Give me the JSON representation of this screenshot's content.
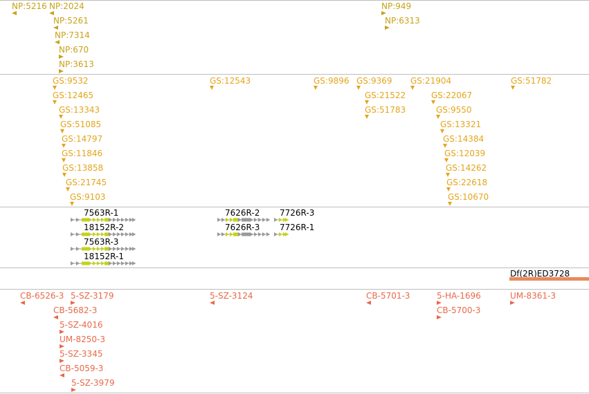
{
  "colors": {
    "np_marker": "#c8a21a",
    "gs_marker": "#e3a51c",
    "cb_marker": "#e8694a",
    "transcript_grey": "#999999",
    "transcript_cds": "#c4d21c",
    "deficiency_bar": "#e88a5c",
    "divider": "#bdbdbd"
  },
  "tracks": {
    "np_insertions": [
      {
        "label": "NP:5216",
        "marker": "tri-left"
      },
      {
        "label": "NP:2024",
        "marker": "tri-left"
      },
      {
        "label": "NP:5261",
        "marker": "tri-left"
      },
      {
        "label": "NP:7314",
        "marker": "tri-left"
      },
      {
        "label": "NP:670",
        "marker": "tri-right"
      },
      {
        "label": "NP:3613",
        "marker": "tri-right"
      },
      {
        "label": "NP:949",
        "marker": "tri-right"
      },
      {
        "label": "NP:6313",
        "marker": "tri-right"
      }
    ],
    "gs_insertions": [
      {
        "label": "GS:9532"
      },
      {
        "label": "GS:12465"
      },
      {
        "label": "GS:13343"
      },
      {
        "label": "GS:51085"
      },
      {
        "label": "GS:14797"
      },
      {
        "label": "GS:11846"
      },
      {
        "label": "GS:13858"
      },
      {
        "label": "GS:21745"
      },
      {
        "label": "GS:9103"
      },
      {
        "label": "GS:12543"
      },
      {
        "label": "GS:9896"
      },
      {
        "label": "GS:9369"
      },
      {
        "label": "GS:21522"
      },
      {
        "label": "GS:51783"
      },
      {
        "label": "GS:21904"
      },
      {
        "label": "GS:22067"
      },
      {
        "label": "GS:9550"
      },
      {
        "label": "GS:13321"
      },
      {
        "label": "GS:14384"
      },
      {
        "label": "GS:12039"
      },
      {
        "label": "GS:14262"
      },
      {
        "label": "GS:22618"
      },
      {
        "label": "GS:10670"
      },
      {
        "label": "GS:51782"
      }
    ],
    "transcripts": [
      {
        "label": "7563R-1"
      },
      {
        "label": "18152R-2"
      },
      {
        "label": "7563R-3"
      },
      {
        "label": "18152R-1"
      },
      {
        "label": "7626R-2"
      },
      {
        "label": "7626R-3"
      },
      {
        "label": "7726R-3"
      },
      {
        "label": "7726R-1"
      }
    ],
    "deficiencies": [
      {
        "label": "Df(2R)ED3728"
      }
    ],
    "other_insertions": [
      {
        "label": "CB-6526-3",
        "marker": "tri-left"
      },
      {
        "label": "5-SZ-3179",
        "marker": "tri-right"
      },
      {
        "label": "CB-5682-3",
        "marker": "tri-left"
      },
      {
        "label": "5-SZ-4016",
        "marker": "tri-right"
      },
      {
        "label": "UM-8250-3",
        "marker": "tri-right"
      },
      {
        "label": "5-SZ-3345",
        "marker": "tri-right"
      },
      {
        "label": "CB-5059-3",
        "marker": "tri-left"
      },
      {
        "label": "5-SZ-3979",
        "marker": "tri-right"
      },
      {
        "label": "5-SZ-3124",
        "marker": "tri-left"
      },
      {
        "label": "CB-5701-3",
        "marker": "tri-left"
      },
      {
        "label": "5-HA-1696",
        "marker": "tri-right"
      },
      {
        "label": "CB-5700-3",
        "marker": "tri-right"
      },
      {
        "label": "UM-8361-3",
        "marker": "tri-right"
      }
    ]
  }
}
